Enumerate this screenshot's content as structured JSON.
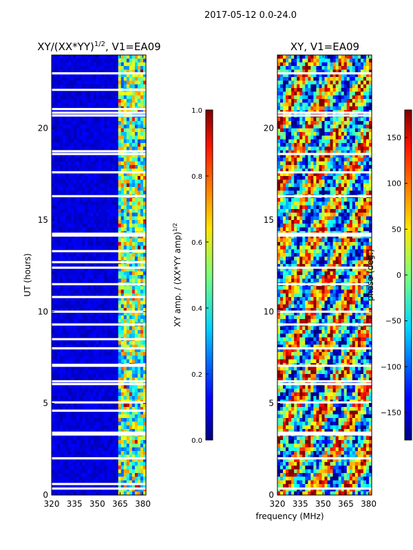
{
  "figure": {
    "suptitle": "2017-05-12 0.0-24.0",
    "xlabel": "frequency (MHz)"
  },
  "chart_data": [
    {
      "type": "heatmap",
      "title_main": "XY/(XX*YY)",
      "title_sup": "1/2",
      "title_tail": ", V1=EA09",
      "ylabel": "UT (hours)",
      "xlim": [
        320,
        382
      ],
      "ylim": [
        0,
        24
      ],
      "x_ticks": [
        320,
        335,
        350,
        365,
        380
      ],
      "y_ticks": [
        0,
        5,
        10,
        15,
        20
      ],
      "colormap": "jet",
      "colorbar": {
        "label_main": "XY amp. / (XX*YY amp)",
        "label_sup": "1/2",
        "range": [
          0.0,
          1.0
        ],
        "ticks": [
          "0.0",
          "0.2",
          "0.4",
          "0.6",
          "0.8",
          "1.0"
        ]
      },
      "blank_rows_ut": [
        0.35,
        0.6,
        2.0,
        3.3,
        3.4,
        4.6,
        5.05,
        6.05,
        6.2,
        7.05,
        7.1,
        8.0,
        8.5,
        9.3,
        10.0,
        10.8,
        11.5,
        12.4,
        12.7,
        13.3,
        14.15,
        14.25,
        16.3,
        17.6,
        18.6,
        18.75,
        20.7,
        20.85,
        21.05,
        22.1,
        23.0
      ],
      "description_bands": [
        {
          "x_from": 320,
          "x_to": 363,
          "level": 0.05
        },
        {
          "x_from": 363,
          "x_to": 382,
          "level": 0.45
        }
      ]
    },
    {
      "type": "heatmap",
      "title_main": "XY, V1=EA09",
      "ylabel": "",
      "xlim": [
        320,
        382
      ],
      "ylim": [
        0,
        24
      ],
      "x_ticks": [
        320,
        335,
        350,
        365,
        380
      ],
      "y_ticks": [
        0,
        5,
        10,
        15,
        20
      ],
      "colormap": "jet",
      "colorbar": {
        "label_main": "phase (deg.)",
        "range": [
          -180,
          180
        ],
        "ticks": [
          "−150",
          "−100",
          "−50",
          "0",
          "50",
          "100",
          "150"
        ],
        "tick_values": [
          -150,
          -100,
          -50,
          0,
          50,
          100,
          150
        ]
      },
      "blank_rows_ut": [
        0.35,
        2.0,
        3.3,
        3.4,
        5.05,
        6.05,
        6.2,
        7.05,
        8.0,
        9.3,
        10.0,
        11.5,
        12.4,
        14.15,
        14.25,
        16.3,
        17.6,
        18.6,
        20.7,
        20.85,
        23.0
      ]
    }
  ]
}
